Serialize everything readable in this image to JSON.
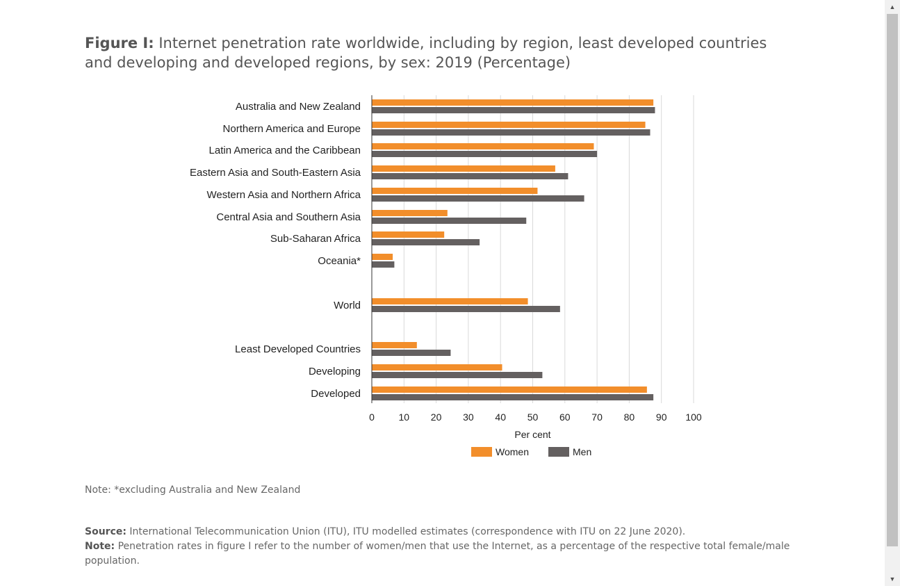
{
  "figure": {
    "title_bold": "Figure I:",
    "title_rest": " Internet penetration rate worldwide, including by region, least developed countries and developing and developed regions, by sex: 2019 (Percentage)"
  },
  "chart_data": {
    "type": "bar",
    "orientation": "horizontal",
    "categories": [
      "Australia and New Zealand",
      "Northern America and Europe",
      "Latin America and the Caribbean",
      "Eastern Asia and South-Eastern Asia",
      "Western Asia  and Northern Africa",
      "Central Asia and Southern Asia",
      "Sub-Saharan Africa",
      "Oceania*",
      "World",
      "Least Developed Countries",
      "Developing",
      "Developed"
    ],
    "series": [
      {
        "name": "Women",
        "color": "#f28e2b",
        "values": [
          87.5,
          85,
          69,
          57,
          51.5,
          23.5,
          22.5,
          6.5,
          48.5,
          14,
          40.5,
          85.5
        ]
      },
      {
        "name": "Men",
        "color": "#646060",
        "values": [
          88,
          86.5,
          70,
          61,
          66,
          48,
          33.5,
          7,
          58.5,
          24.5,
          53,
          87.5
        ]
      }
    ],
    "xlim": [
      0,
      100
    ],
    "xticks": [
      0,
      10,
      20,
      30,
      40,
      50,
      60,
      70,
      80,
      90,
      100
    ],
    "xtick_labels": [
      "0",
      "10",
      "20",
      "30",
      "40",
      "50",
      "60",
      "70",
      "80",
      "90",
      "100"
    ],
    "xlabel": "Per cent",
    "ylabel": "",
    "grid": "vertical",
    "legend": "bottom-center"
  },
  "notes": {
    "excluding": "Note: *excluding Australia and New Zealand",
    "source_label": "Source:",
    "source_text": " International Telecommunication Union (ITU), ITU modelled estimates (correspondence with ITU on 22 June 2020).",
    "note_label": "Note:",
    "note_text": " Penetration rates in figure I refer to the number of women/men that use the Internet, as a percentage of the respective total female/male population."
  }
}
